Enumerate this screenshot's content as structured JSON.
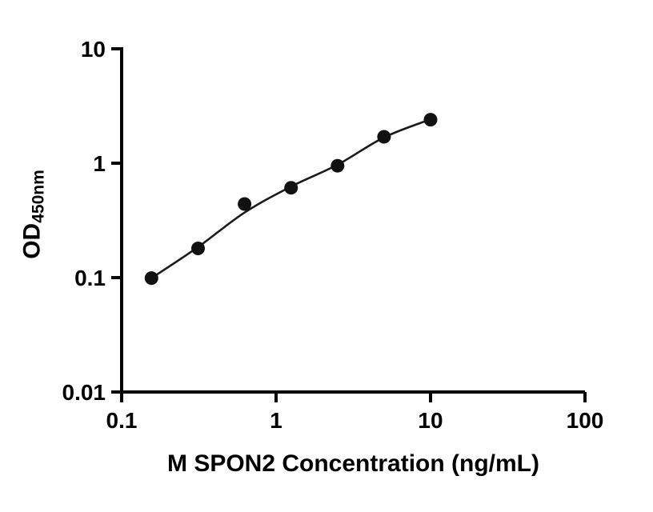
{
  "chart_data": {
    "type": "scatter",
    "title": "",
    "xlabel": "M SPON2 Concentration (ng/mL)",
    "ylabel_base": "OD",
    "ylabel_sub": "450nm",
    "xscale": "log",
    "yscale": "log",
    "xlim": [
      0.1,
      100
    ],
    "ylim": [
      0.01,
      10
    ],
    "grid": false,
    "legend": false,
    "x_ticks": [
      {
        "value": 0.1,
        "label": "0.1"
      },
      {
        "value": 1,
        "label": "1"
      },
      {
        "value": 10,
        "label": "10"
      },
      {
        "value": 100,
        "label": "100"
      }
    ],
    "y_ticks": [
      {
        "value": 0.01,
        "label": "0.01"
      },
      {
        "value": 0.1,
        "label": "0.1"
      },
      {
        "value": 1,
        "label": "1"
      },
      {
        "value": 10,
        "label": "10"
      }
    ],
    "points": {
      "x": [
        0.156,
        0.3125,
        0.625,
        1.25,
        2.5,
        5,
        10
      ],
      "y": [
        0.099,
        0.18,
        0.44,
        0.61,
        0.95,
        1.7,
        2.4
      ]
    },
    "fit_curve": {
      "x": [
        0.156,
        0.3125,
        0.625,
        1.25,
        2.5,
        5,
        10
      ],
      "y": [
        0.099,
        0.185,
        0.37,
        0.625,
        0.97,
        1.68,
        2.42
      ]
    },
    "colors": {
      "point": "#111111",
      "curve": "#1a1a1a",
      "axis": "#000000",
      "text": "#000000",
      "background": "#ffffff"
    }
  }
}
